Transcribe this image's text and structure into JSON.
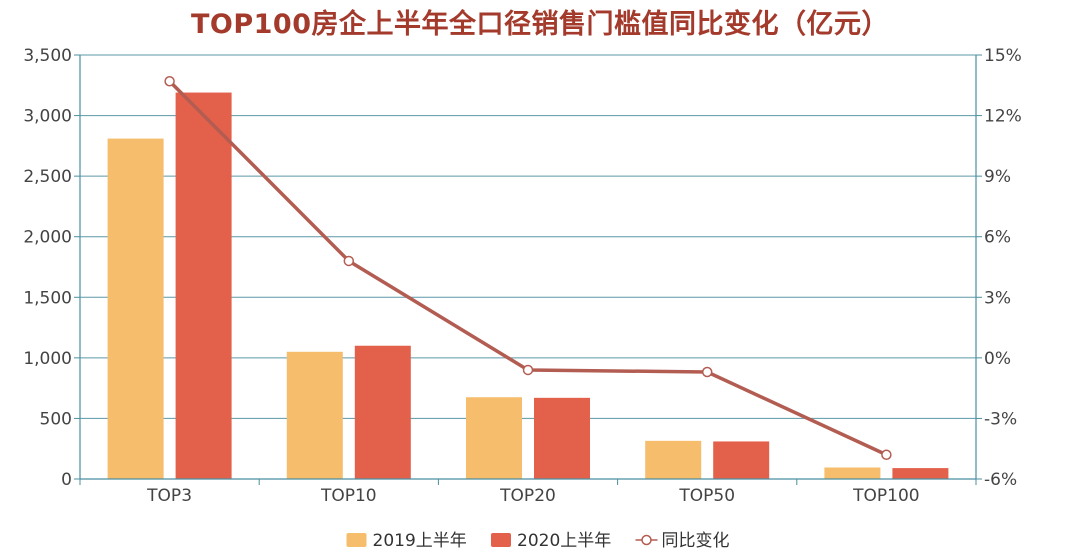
{
  "chart_data": {
    "type": "bar",
    "title": "TOP100房企上半年全口径销售门槛值同比变化（亿元）",
    "categories": [
      "TOP3",
      "TOP10",
      "TOP20",
      "TOP50",
      "TOP100"
    ],
    "series": [
      {
        "name": "2019上半年",
        "kind": "bar",
        "axis": "left",
        "color": "#f5bd6c",
        "values": [
          2810,
          1050,
          675,
          315,
          95
        ]
      },
      {
        "name": "2020上半年",
        "kind": "bar",
        "axis": "left",
        "color": "#e3604a",
        "values": [
          3190,
          1100,
          670,
          310,
          90
        ]
      },
      {
        "name": "同比变化",
        "kind": "line",
        "axis": "right",
        "color": "#b35d52",
        "unit": "%",
        "values": [
          13.7,
          4.8,
          -0.6,
          -0.7,
          -4.8
        ]
      }
    ],
    "y_left": {
      "min": 0,
      "max": 3500,
      "ticks": [
        0,
        500,
        1000,
        1500,
        2000,
        2500,
        3000,
        3500
      ],
      "tick_labels": [
        "0",
        "500",
        "1,000",
        "1,500",
        "2,000",
        "2,500",
        "3,000",
        "3,500"
      ]
    },
    "y_right": {
      "min": -6,
      "max": 15,
      "ticks": [
        -6,
        -3,
        0,
        3,
        6,
        9,
        12,
        15
      ],
      "tick_labels": [
        "-6%",
        "-3%",
        "0%",
        "3%",
        "6%",
        "9%",
        "12%",
        "15%"
      ]
    },
    "grid": true,
    "legend_position": "bottom-center",
    "colors": {
      "axis": "#4a8fa0",
      "grid": "#5b97a6",
      "tick_text": "#444444",
      "title": "#a33a2b"
    }
  }
}
